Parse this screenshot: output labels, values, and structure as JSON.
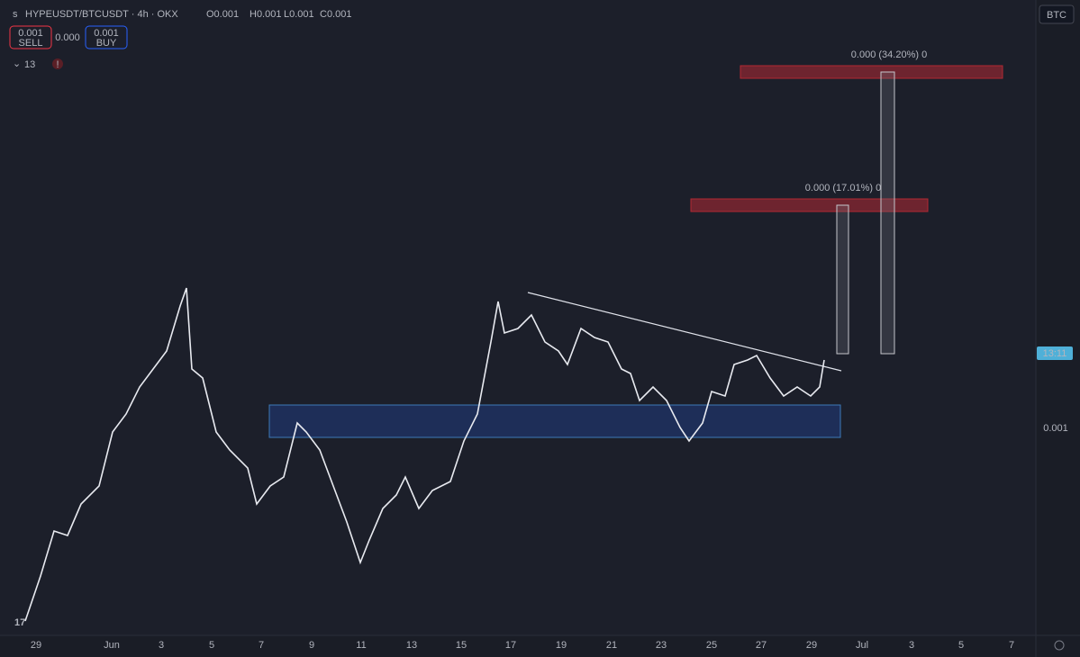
{
  "header": {
    "symbol": "HYPEUSDT/BTCUSDT · 4h · OKX",
    "ohlc": [
      "O0.001",
      "H0.001",
      "L0.001",
      "C0.001"
    ]
  },
  "trade": {
    "sell_price": "0.001",
    "sell": "SELL",
    "spread": "0.000",
    "buy_price": "0.001",
    "buy": "BUY"
  },
  "indicators_count": "13",
  "currency": "BTC",
  "price_axis": {
    "label": "0.001",
    "countdown": "13:11"
  },
  "targets": [
    "0.000 (17.01%) 0",
    "0.000 (34.20%) 0"
  ],
  "time_axis": [
    "29",
    "Jun",
    "3",
    "5",
    "7",
    "9",
    "11",
    "13",
    "15",
    "17",
    "19",
    "21",
    "23",
    "25",
    "27",
    "29",
    "Jul",
    "3",
    "5",
    "7"
  ]
}
